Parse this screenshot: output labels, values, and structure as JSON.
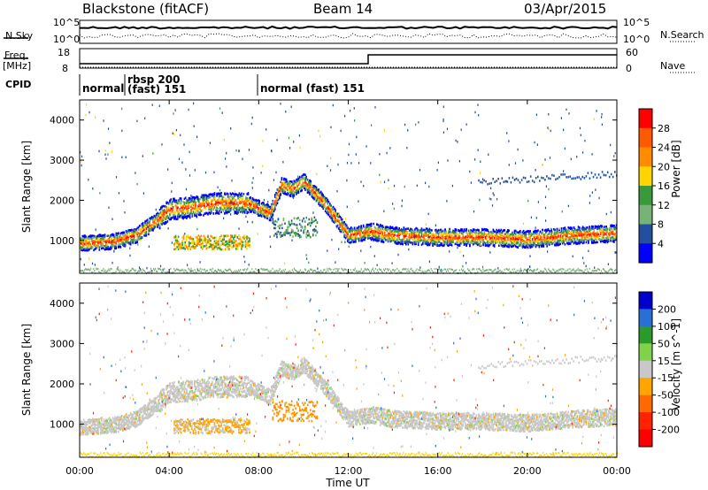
{
  "header": {
    "station": "Blackstone (fitACF)",
    "beam": "Beam 14",
    "date": "03/Apr/2015"
  },
  "strips": {
    "noise_left_label": "N.Sky",
    "noise_right_label": "N.Search",
    "noise_ticks_left": [
      "10^5",
      "10^0"
    ],
    "noise_ticks_right": [
      "10^5",
      "10^0"
    ],
    "freq_label_1": "Freq.",
    "freq_label_2": "[MHz]",
    "freq_ticks": [
      "18",
      "8"
    ],
    "nave_label": "Nave",
    "nave_ticks": [
      "60",
      "0"
    ],
    "cpid_label": "CPID",
    "cpid_segments": [
      "normal",
      "rbsp 200",
      "(fast) 151",
      "normal (fast) 151"
    ]
  },
  "chart_data": [
    {
      "type": "heatmap",
      "title": "",
      "xlabel": "Time UT",
      "ylabel": "Slant Range [km]",
      "colorbar_label": "Power [dB]",
      "colorbar_ticks": [
        "28",
        "24",
        "20",
        "16",
        "12",
        "8",
        "4"
      ],
      "colorbar_colors": [
        "#ff0000",
        "#ff5a00",
        "#ff8c00",
        "#ffd400",
        "#3a9a3a",
        "#77b277",
        "#224f9e",
        "#0000ff"
      ],
      "x_ticks": [
        "00:00",
        "04:00",
        "08:00",
        "12:00",
        "16:00",
        "20:00",
        "00:00"
      ],
      "xlim_hours": [
        0,
        24
      ],
      "y_ticks": [
        "1000",
        "2000",
        "3000",
        "4000"
      ],
      "ylim": [
        180,
        4500
      ],
      "scatter_bands": [
        {
          "t": [
            0.0,
            1.5,
            2.5,
            3.5,
            4.0,
            5.0,
            6.0,
            7.5,
            8.5,
            9.0,
            9.5,
            10.0,
            10.5,
            11.0,
            12.0,
            13.0,
            14.0,
            16.0,
            18.0,
            20.0,
            22.0,
            24.0
          ],
          "range": [
            950,
            1000,
            1150,
            1550,
            1800,
            1850,
            1950,
            1950,
            1700,
            2400,
            2300,
            2500,
            2200,
            1900,
            1150,
            1250,
            1150,
            1100,
            1100,
            1050,
            1150,
            1200
          ]
        }
      ]
    },
    {
      "type": "heatmap",
      "title": "",
      "xlabel": "Time UT",
      "ylabel": "Slant Range [km]",
      "colorbar_label": "Velocity [m s^-1]",
      "colorbar_ticks": [
        "200",
        "100",
        "50",
        "15",
        "-15",
        "-50",
        "-100",
        "-200"
      ],
      "colorbar_colors": [
        "#0000cc",
        "#2a6fd6",
        "#2a9a2a",
        "#7fd34a",
        "#c8c8c8",
        "#ffa500",
        "#ff6a00",
        "#ff2200",
        "#ff0000"
      ],
      "x_ticks": [
        "00:00",
        "04:00",
        "08:00",
        "12:00",
        "16:00",
        "20:00",
        "00:00"
      ],
      "xlim_hours": [
        0,
        24
      ],
      "y_ticks": [
        "1000",
        "2000",
        "3000",
        "4000"
      ],
      "ylim": [
        180,
        4500
      ]
    }
  ],
  "x_axis_title": "Time UT"
}
